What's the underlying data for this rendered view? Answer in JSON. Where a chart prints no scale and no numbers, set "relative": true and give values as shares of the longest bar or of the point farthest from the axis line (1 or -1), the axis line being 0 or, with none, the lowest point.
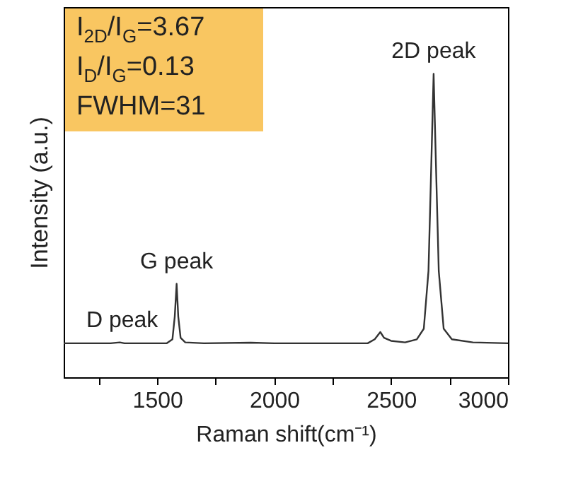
{
  "chart_data": {
    "type": "line",
    "relative": true,
    "xlabel": "Raman shift(cm⁻¹)",
    "ylabel": "Intensity (a.u.)",
    "xlim": [
      1100,
      3000
    ],
    "xticks": [
      {
        "value": 1250,
        "label": null
      },
      1500,
      {
        "value": 1750,
        "label": null
      },
      2000,
      {
        "value": 2250,
        "label": null
      },
      2500,
      {
        "value": 2750,
        "label": null
      },
      3000
    ],
    "x": [
      1100,
      1300,
      1340,
      1360,
      1540,
      1565,
      1575,
      1583,
      1590,
      1600,
      1620,
      1700,
      1900,
      2000,
      2400,
      2430,
      2454,
      2470,
      2500,
      2560,
      2610,
      2640,
      2660,
      2672,
      2682,
      2692,
      2704,
      2725,
      2760,
      2850,
      3000
    ],
    "series": [
      {
        "color": "#333333",
        "values": [
          0.112,
          0.112,
          0.115,
          0.112,
          0.112,
          0.125,
          0.2,
          0.308,
          0.2,
          0.13,
          0.115,
          0.112,
          0.114,
          0.112,
          0.112,
          0.125,
          0.149,
          0.13,
          0.12,
          0.115,
          0.125,
          0.16,
          0.35,
          0.7,
          1,
          0.7,
          0.35,
          0.16,
          0.125,
          0.115,
          0.112
        ]
      }
    ],
    "annotations": [
      "I$_{2D}$/I$_{G}$=3.67",
      "I$_{D}$/I$_{G}$=0.13",
      "FWHM=31",
      {
        "text": "D peak",
        "x": 1350,
        "y": 0.115
      },
      {
        "text": "G peak",
        "x": 1583,
        "y": 0.308
      },
      {
        "text": "2D peak",
        "x": 2682,
        "y": 1
      }
    ],
    "grid": false
  }
}
